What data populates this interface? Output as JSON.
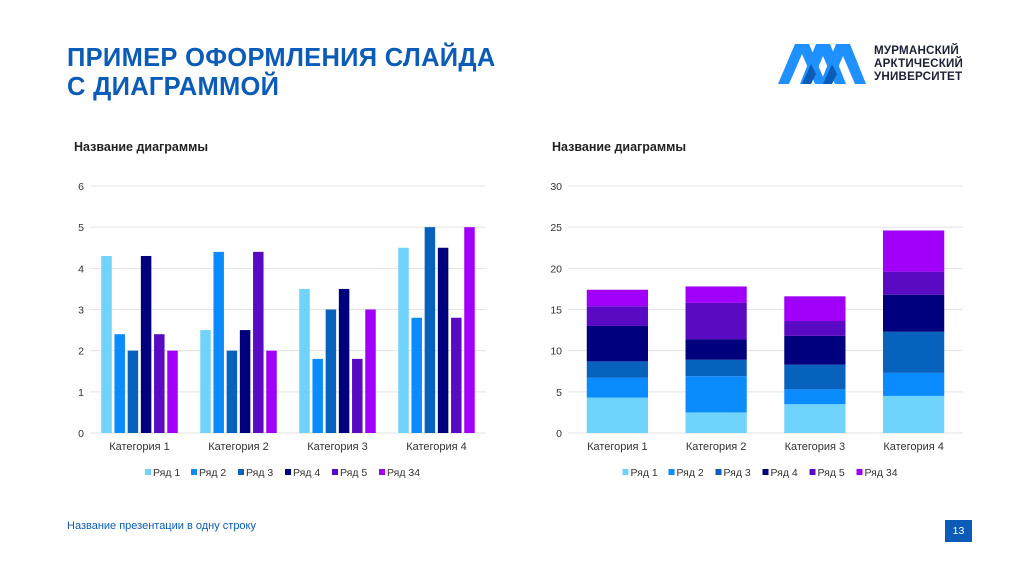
{
  "slide": {
    "title_line1": "ПРИМЕР ОФОРМЛЕНИЯ СЛАЙДА",
    "title_line2": "С ДИАГРАММОЙ",
    "logo": {
      "icon": "university-logo-icon",
      "line1": "МУРМАНСКИЙ",
      "line2": "АРКТИЧЕСКИЙ",
      "line3": "УНИВЕРСИТЕТ",
      "colors": [
        "#1e90ff",
        "#0a5cb8"
      ]
    },
    "footer_text": "Название презентации в одну строку",
    "page_number": "13",
    "accent_color": "#0a5cb8"
  },
  "chart_data": [
    {
      "type": "bar",
      "title": "Название диаграммы",
      "categories": [
        "Категория 1",
        "Категория 2",
        "Категория 3",
        "Категория 4"
      ],
      "series": [
        {
          "name": "Ряд 1",
          "color": "#6fd3fb",
          "values": [
            4.3,
            2.5,
            3.5,
            4.5
          ]
        },
        {
          "name": "Ряд 2",
          "color": "#0a8cff",
          "values": [
            2.4,
            4.4,
            1.8,
            2.8
          ]
        },
        {
          "name": "Ряд 3",
          "color": "#0762be",
          "values": [
            2,
            2,
            3,
            5
          ]
        },
        {
          "name": "Ряд 4",
          "color": "#00007f",
          "values": [
            4.3,
            2.5,
            3.5,
            4.5
          ]
        },
        {
          "name": "Ряд 5",
          "color": "#5b0ac4",
          "values": [
            2.4,
            4.4,
            1.8,
            2.8
          ]
        },
        {
          "name": "Ряд 34",
          "color": "#a000fa",
          "values": [
            2,
            2,
            3,
            5
          ]
        }
      ],
      "yticks": [
        "0",
        "1",
        "2",
        "3",
        "4",
        "5",
        "6"
      ],
      "ylim": [
        0,
        6
      ],
      "xlabel": "",
      "ylabel": "",
      "grid": true,
      "legend": "bottom"
    },
    {
      "type": "bar",
      "stacked": true,
      "title": "Название диаграммы",
      "categories": [
        "Категория 1",
        "Категория 2",
        "Категория 3",
        "Категория 4"
      ],
      "series": [
        {
          "name": "Ряд 1",
          "color": "#6fd3fb",
          "values": [
            4.3,
            2.5,
            3.5,
            4.5
          ]
        },
        {
          "name": "Ряд 2",
          "color": "#0a8cff",
          "values": [
            2.4,
            4.4,
            1.8,
            2.8
          ]
        },
        {
          "name": "Ряд 3",
          "color": "#0762be",
          "values": [
            2,
            2,
            3,
            5
          ]
        },
        {
          "name": "Ряд 4",
          "color": "#00007f",
          "values": [
            4.3,
            2.5,
            3.5,
            4.5
          ]
        },
        {
          "name": "Ряд 5",
          "color": "#5b0ac4",
          "values": [
            2.4,
            4.4,
            1.8,
            2.8
          ]
        },
        {
          "name": "Ряд 34",
          "color": "#a000fa",
          "values": [
            2,
            2,
            3,
            5
          ]
        }
      ],
      "yticks": [
        "0",
        "5",
        "10",
        "15",
        "20",
        "25",
        "30"
      ],
      "ylim": [
        0,
        30
      ],
      "xlabel": "",
      "ylabel": "",
      "grid": true,
      "legend": "bottom"
    }
  ]
}
